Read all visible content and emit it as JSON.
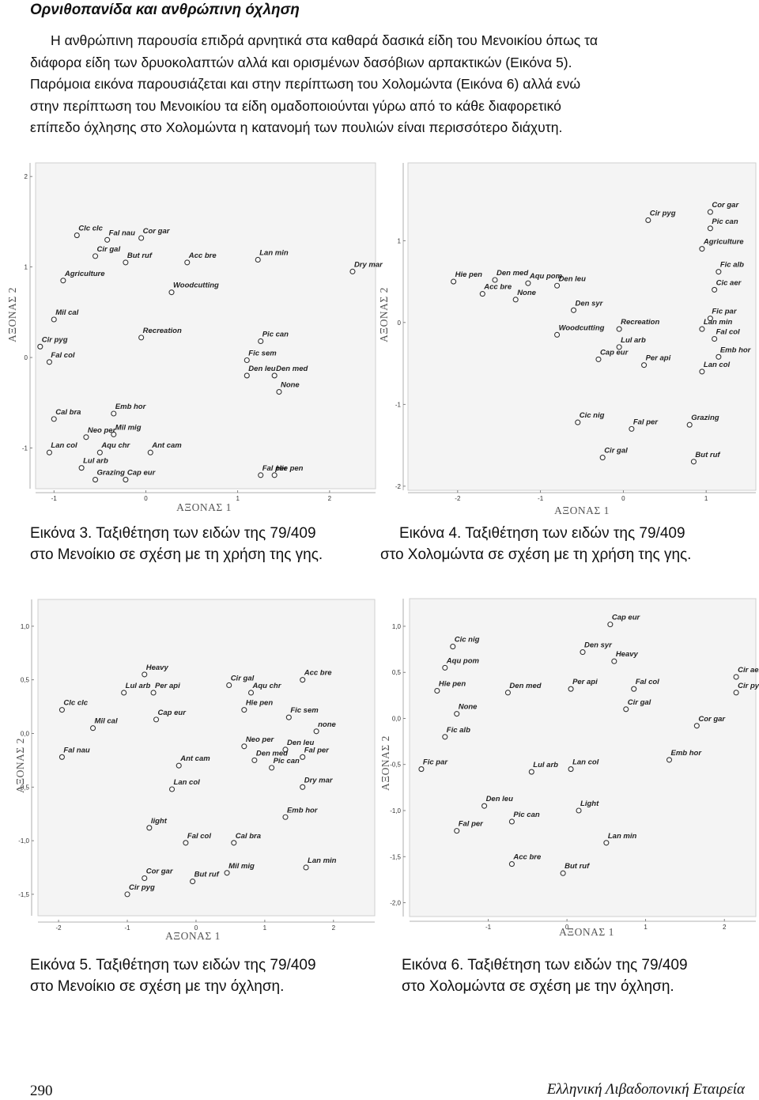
{
  "heading": "Ορνιθοπανίδα και ανθρώπινη όχληση",
  "intro": {
    "p1_lines": [
      "Η ανθρώπινη παρουσία επιδρά αρνητικά στα καθαρά δασικά είδη του Μενοικίου όπως τα",
      "διάφορα είδη των δρυοκολαπτών αλλά και ορισμένων δασόβιων αρπακτικών (Εικόνα 5)."
    ],
    "p2_lines": [
      "Παρόμοια εικόνα παρουσιάζεται και στην περίπτωση του Χολομώντα (Εικόνα 6) αλλά ενώ",
      "στην περίπτωση του Μενοικίου τα είδη ομαδοποιούνται γύρω από το κάθε διαφορετικό",
      "επίπεδο όχλησης στο Χολομώντα η κατανομή των πουλιών είναι περισσότερο διάχυτη."
    ]
  },
  "figures": [
    {
      "caption_lines": [
        "Εικόνα 3. Ταξιθέτηση των ειδών της 79/409",
        "στο Μενοίκιο σε σχέση με τη χρήση της γης."
      ],
      "xaxis_label": "ΑΞΟΝΑΣ 1",
      "yaxis_label": "ΑΞΟΝΑΣ 2",
      "xticks": [
        "-1",
        "0",
        "1",
        "2"
      ],
      "yticks": [
        "2",
        "1",
        "0",
        "-1"
      ],
      "chart_data": {
        "type": "scatter",
        "xlim": [
          -1.2,
          2.5
        ],
        "ylim": [
          -1.45,
          2.15
        ],
        "points": [
          {
            "label": "Clc clc",
            "x": -0.75,
            "y": 1.35
          },
          {
            "label": "Fal nau",
            "x": -0.42,
            "y": 1.3
          },
          {
            "label": "Cor gar",
            "x": -0.05,
            "y": 1.32
          },
          {
            "label": "Cir gal",
            "x": -0.55,
            "y": 1.12
          },
          {
            "label": "But ruf",
            "x": -0.22,
            "y": 1.05
          },
          {
            "label": "Agriculture",
            "x": -0.9,
            "y": 0.85
          },
          {
            "label": "Acc bre",
            "x": 0.45,
            "y": 1.05
          },
          {
            "label": "Woodcutting",
            "x": 0.28,
            "y": 0.72
          },
          {
            "label": "Lan min",
            "x": 1.22,
            "y": 1.08
          },
          {
            "label": "Dry mar",
            "x": 2.25,
            "y": 0.95
          },
          {
            "label": "Mil cal",
            "x": -1.0,
            "y": 0.42
          },
          {
            "label": "Recreation",
            "x": -0.05,
            "y": 0.22
          },
          {
            "label": "Cir pyg",
            "x": -1.15,
            "y": 0.12
          },
          {
            "label": "Pic can",
            "x": 1.25,
            "y": 0.18
          },
          {
            "label": "Fal col",
            "x": -1.05,
            "y": -0.05
          },
          {
            "label": "Fic sem",
            "x": 1.1,
            "y": -0.03
          },
          {
            "label": "Den leu",
            "x": 1.1,
            "y": -0.2
          },
          {
            "label": "Den med",
            "x": 1.4,
            "y": -0.2
          },
          {
            "label": "None",
            "x": 1.45,
            "y": -0.38
          },
          {
            "label": "Cal bra",
            "x": -1.0,
            "y": -0.68
          },
          {
            "label": "Emb hor",
            "x": -0.35,
            "y": -0.62
          },
          {
            "label": "Mil mig",
            "x": -0.35,
            "y": -0.85
          },
          {
            "label": "Neo per",
            "x": -0.65,
            "y": -0.88
          },
          {
            "label": "Lan col",
            "x": -1.05,
            "y": -1.05
          },
          {
            "label": "Aqu chr",
            "x": -0.5,
            "y": -1.05
          },
          {
            "label": "Ant cam",
            "x": 0.05,
            "y": -1.05
          },
          {
            "label": "Lul arb",
            "x": -0.7,
            "y": -1.22
          },
          {
            "label": "Grazing",
            "x": -0.55,
            "y": -1.35
          },
          {
            "label": "Cap eur",
            "x": -0.22,
            "y": -1.35
          },
          {
            "label": "Fal per",
            "x": 1.25,
            "y": -1.3
          },
          {
            "label": "Hie pen",
            "x": 1.4,
            "y": -1.3
          }
        ]
      }
    },
    {
      "caption_lines": [
        "Εικόνα 4. Ταξιθέτηση των ειδών της 79/409",
        "στο Χολομώντα σε σχέση με τη χρήση της γης."
      ],
      "xaxis_label": "ΑΞΟΝΑΣ 1",
      "yaxis_label": "ΑΞΟΝΑΣ 2",
      "xticks": [
        "-2",
        "-1",
        "0",
        "1"
      ],
      "yticks": [
        "1",
        "0",
        "-1",
        "-2"
      ],
      "chart_data": {
        "type": "scatter",
        "xlim": [
          -2.6,
          1.6
        ],
        "ylim": [
          -2.05,
          1.95
        ],
        "points": [
          {
            "label": "Cor gar",
            "x": 1.05,
            "y": 1.35
          },
          {
            "label": "Cir pyg",
            "x": 0.3,
            "y": 1.25
          },
          {
            "label": "Pic can",
            "x": 1.05,
            "y": 1.15
          },
          {
            "label": "Agriculture",
            "x": 0.95,
            "y": 0.9
          },
          {
            "label": "Fic alb",
            "x": 1.15,
            "y": 0.62
          },
          {
            "label": "Cic aer",
            "x": 1.1,
            "y": 0.4
          },
          {
            "label": "Hie pen",
            "x": -2.05,
            "y": 0.5
          },
          {
            "label": "Aqu pom",
            "x": -1.15,
            "y": 0.48
          },
          {
            "label": "Den med",
            "x": -1.55,
            "y": 0.52
          },
          {
            "label": "Acc bre",
            "x": -1.7,
            "y": 0.35
          },
          {
            "label": "None",
            "x": -1.3,
            "y": 0.28
          },
          {
            "label": "Den leu",
            "x": -0.8,
            "y": 0.45
          },
          {
            "label": "Den syr",
            "x": -0.6,
            "y": 0.15
          },
          {
            "label": "Fic par",
            "x": 1.05,
            "y": 0.05
          },
          {
            "label": "Woodcutting",
            "x": -0.8,
            "y": -0.15
          },
          {
            "label": "Recreation",
            "x": -0.05,
            "y": -0.08
          },
          {
            "label": "Lan min",
            "x": 0.95,
            "y": -0.08
          },
          {
            "label": "Fal col",
            "x": 1.1,
            "y": -0.2
          },
          {
            "label": "Lul arb",
            "x": -0.05,
            "y": -0.3
          },
          {
            "label": "Emb hor",
            "x": 1.15,
            "y": -0.42
          },
          {
            "label": "Cap eur",
            "x": -0.3,
            "y": -0.45
          },
          {
            "label": "Per api",
            "x": 0.25,
            "y": -0.52
          },
          {
            "label": "Lan col",
            "x": 0.95,
            "y": -0.6
          },
          {
            "label": "Cic nig",
            "x": -0.55,
            "y": -1.22
          },
          {
            "label": "Fal per",
            "x": 0.1,
            "y": -1.3
          },
          {
            "label": "Grazing",
            "x": 0.8,
            "y": -1.25
          },
          {
            "label": "Cir gal",
            "x": -0.25,
            "y": -1.65
          },
          {
            "label": "But ruf",
            "x": 0.85,
            "y": -1.7
          }
        ]
      }
    },
    {
      "caption_lines": [
        "Εικόνα 5. Ταξιθέτηση των ειδών της 79/409",
        "στο Μενοίκιο σε σχέση με την όχληση."
      ],
      "xaxis_label": "ΑΞΟΝΑΣ 1",
      "yaxis_label": "ΑΞΟΝΑΣ 2",
      "xticks": [
        "-2",
        "-1",
        "0",
        "1",
        "2"
      ],
      "yticks": [
        "1,0",
        "0,5",
        "0,0",
        "-0,5",
        "-1,0",
        "-1,5"
      ],
      "chart_data": {
        "type": "scatter",
        "xlim": [
          -2.3,
          2.6
        ],
        "ylim": [
          -1.7,
          1.25
        ],
        "points": [
          {
            "label": "Heavy",
            "x": -0.75,
            "y": 0.55
          },
          {
            "label": "Acc bre",
            "x": 1.55,
            "y": 0.5
          },
          {
            "label": "Lul arb",
            "x": -1.05,
            "y": 0.38
          },
          {
            "label": "Per api",
            "x": -0.62,
            "y": 0.38
          },
          {
            "label": "Cir gal",
            "x": 0.48,
            "y": 0.45
          },
          {
            "label": "Aqu chr",
            "x": 0.8,
            "y": 0.38
          },
          {
            "label": "Clc clc",
            "x": -1.95,
            "y": 0.22
          },
          {
            "label": "Hie pen",
            "x": 0.7,
            "y": 0.22
          },
          {
            "label": "Fic sem",
            "x": 1.35,
            "y": 0.15
          },
          {
            "label": "Cap eur",
            "x": -0.58,
            "y": 0.13
          },
          {
            "label": "Mil cal",
            "x": -1.5,
            "y": 0.05
          },
          {
            "label": "none",
            "x": 1.75,
            "y": 0.02
          },
          {
            "label": "Fal nau",
            "x": -1.95,
            "y": -0.22
          },
          {
            "label": "Neo per",
            "x": 0.7,
            "y": -0.12
          },
          {
            "label": "Den leu",
            "x": 1.3,
            "y": -0.15
          },
          {
            "label": "Den med",
            "x": 0.85,
            "y": -0.25
          },
          {
            "label": "Fal per",
            "x": 1.55,
            "y": -0.22
          },
          {
            "label": "Ant cam",
            "x": -0.25,
            "y": -0.3
          },
          {
            "label": "Pic can",
            "x": 1.1,
            "y": -0.32
          },
          {
            "label": "Lan col",
            "x": -0.35,
            "y": -0.52
          },
          {
            "label": "Dry mar",
            "x": 1.55,
            "y": -0.5
          },
          {
            "label": "Emb hor",
            "x": 1.3,
            "y": -0.78
          },
          {
            "label": "light",
            "x": -0.68,
            "y": -0.88
          },
          {
            "label": "Fal col",
            "x": -0.15,
            "y": -1.02
          },
          {
            "label": "Cal bra",
            "x": 0.55,
            "y": -1.02
          },
          {
            "label": "Lan min",
            "x": 1.6,
            "y": -1.25
          },
          {
            "label": "Cor gar",
            "x": -0.75,
            "y": -1.35
          },
          {
            "label": "Mil mig",
            "x": 0.45,
            "y": -1.3
          },
          {
            "label": "But ruf",
            "x": -0.05,
            "y": -1.38
          },
          {
            "label": "Cir pyg",
            "x": -1.0,
            "y": -1.5
          }
        ]
      }
    },
    {
      "caption_lines": [
        "Εικόνα 6. Ταξιθέτηση των ειδών της 79/409",
        "στο Χολομώντα σε σχέση με την όχληση."
      ],
      "xaxis_label": "ΑΞΟΝΑΣ 1",
      "yaxis_label": "ΑΞΟΝΑΣ 2",
      "xticks": [
        "-1",
        "0",
        "1",
        "2"
      ],
      "yticks": [
        "1,0",
        "0,5",
        "0,0",
        "-0,5",
        "-1,0",
        "-1,5",
        "-2,0"
      ],
      "chart_data": {
        "type": "scatter",
        "xlim": [
          -2.0,
          2.4
        ],
        "ylim": [
          -2.15,
          1.3
        ],
        "points": [
          {
            "label": "Cap eur",
            "x": 0.55,
            "y": 1.02
          },
          {
            "label": "Cic nig",
            "x": -1.45,
            "y": 0.78
          },
          {
            "label": "Den syr",
            "x": 0.2,
            "y": 0.72
          },
          {
            "label": "Heavy",
            "x": 0.6,
            "y": 0.62
          },
          {
            "label": "Aqu pom",
            "x": -1.55,
            "y": 0.55
          },
          {
            "label": "Cir aer",
            "x": 2.15,
            "y": 0.45
          },
          {
            "label": "Hie pen",
            "x": -1.65,
            "y": 0.3
          },
          {
            "label": "Den med",
            "x": -0.75,
            "y": 0.28
          },
          {
            "label": "Per api",
            "x": 0.05,
            "y": 0.32
          },
          {
            "label": "Fal col",
            "x": 0.85,
            "y": 0.32
          },
          {
            "label": "Cir pyg",
            "x": 2.15,
            "y": 0.28
          },
          {
            "label": "None",
            "x": -1.4,
            "y": 0.05
          },
          {
            "label": "Cir gal",
            "x": 0.75,
            "y": 0.1
          },
          {
            "label": "Cor gar",
            "x": 1.65,
            "y": -0.08
          },
          {
            "label": "Fic alb",
            "x": -1.55,
            "y": -0.2
          },
          {
            "label": "Emb hor",
            "x": 1.3,
            "y": -0.45
          },
          {
            "label": "Fic par",
            "x": -1.85,
            "y": -0.55
          },
          {
            "label": "Lan col",
            "x": 0.05,
            "y": -0.55
          },
          {
            "label": "Lul arb",
            "x": -0.45,
            "y": -0.58
          },
          {
            "label": "Den leu",
            "x": -1.05,
            "y": -0.95
          },
          {
            "label": "Light",
            "x": 0.15,
            "y": -1.0
          },
          {
            "label": "Fal per",
            "x": -1.4,
            "y": -1.22
          },
          {
            "label": "Pic can",
            "x": -0.7,
            "y": -1.12
          },
          {
            "label": "Lan min",
            "x": 0.5,
            "y": -1.35
          },
          {
            "label": "Acc bre",
            "x": -0.7,
            "y": -1.58
          },
          {
            "label": "But ruf",
            "x": -0.05,
            "y": -1.68
          }
        ]
      }
    }
  ],
  "footer": {
    "page_number": "290",
    "journal": "Ελληνική Λιβαδοπονική Εταιρεία"
  }
}
